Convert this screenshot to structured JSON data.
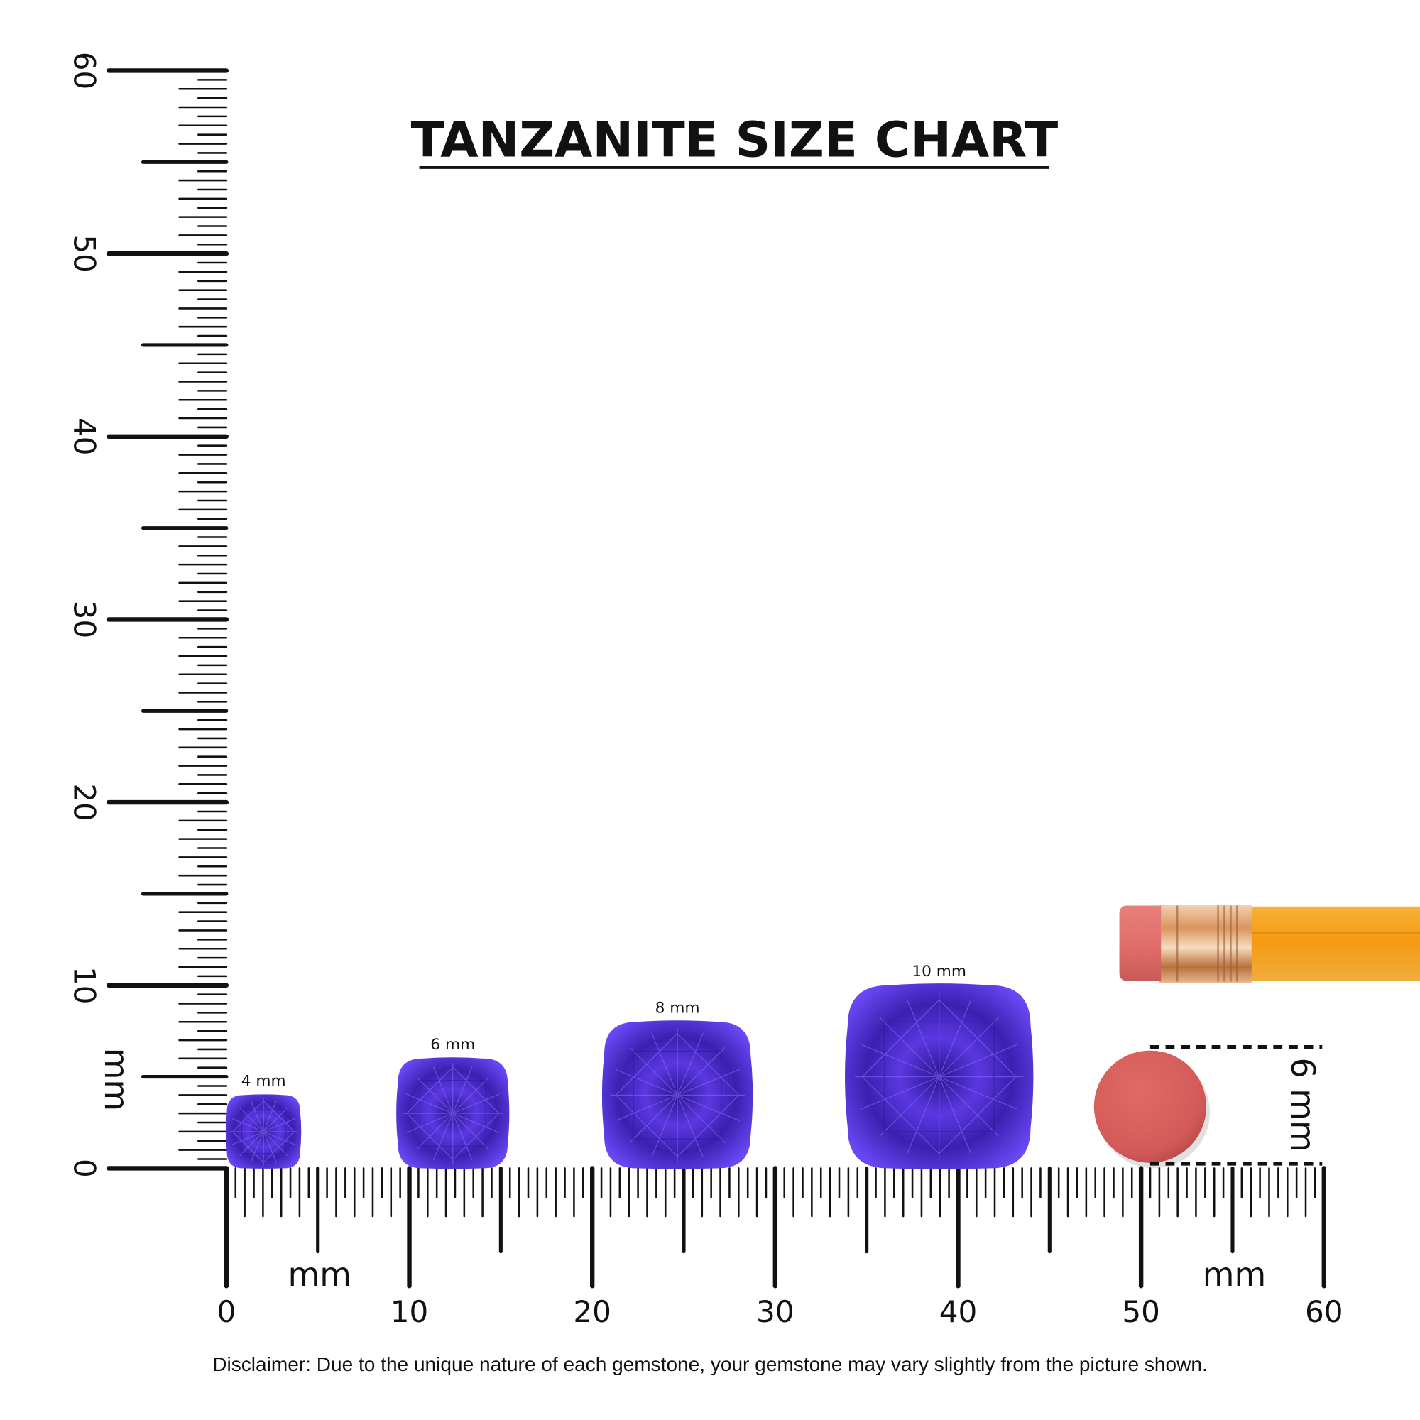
{
  "title": "TANZANITE SIZE CHART",
  "vertical_ruler": {
    "labels": [
      "0",
      "10",
      "20",
      "30",
      "40",
      "50",
      "60"
    ],
    "unit": "mm"
  },
  "horizontal_ruler": {
    "labels": [
      "0",
      "10",
      "20",
      "30",
      "40",
      "50",
      "60"
    ],
    "unit_left": "mm",
    "unit_right": "mm"
  },
  "gems": [
    {
      "label": "4 mm",
      "size_mm": 4
    },
    {
      "label": "6 mm",
      "size_mm": 6
    },
    {
      "label": "8 mm",
      "size_mm": 8
    },
    {
      "label": "10 mm",
      "size_mm": 10
    }
  ],
  "reference": {
    "object": "pencil eraser",
    "dimension_label": "6 mm",
    "size_mm": 6
  },
  "colors": {
    "gem_dark": "#1e0f6e",
    "gem_mid": "#3f24b8",
    "gem_light": "#7a55ff",
    "eraser": "#d35a58",
    "pencil_body": "#f5a01a",
    "ferrule": "#d9955e"
  },
  "disclaimer": "Disclaimer: Due to the unique nature of each gemstone, your gemstone may vary slightly from the picture shown."
}
